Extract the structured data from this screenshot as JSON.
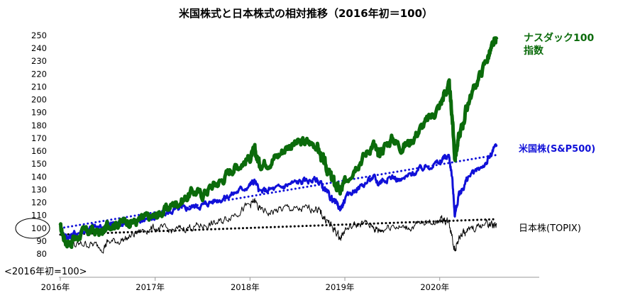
{
  "chart_data": {
    "type": "line",
    "title": "米国株式と日本株式の相対推移（2016年初＝100）",
    "note": "<2016年初=100>",
    "ylim": [
      80,
      250
    ],
    "yticks": [
      80,
      90,
      100,
      110,
      120,
      130,
      140,
      150,
      160,
      170,
      180,
      190,
      200,
      210,
      220,
      230,
      240,
      250
    ],
    "xlim": [
      2016.0,
      2020.75
    ],
    "xticks": [
      {
        "x": 2016,
        "label": "2016年"
      },
      {
        "x": 2017,
        "label": "2017年"
      },
      {
        "x": 2018,
        "label": "2018年"
      },
      {
        "x": 2019,
        "label": "2019年"
      },
      {
        "x": 2020,
        "label": "2020年"
      }
    ],
    "grid": false,
    "highlight_tick": 100,
    "series": [
      {
        "name": "ナスダック100指数",
        "label_lines": [
          "ナスダック100",
          "指数"
        ],
        "color": "#0b6b0b",
        "x": [
          2016.0,
          2016.05,
          2016.1,
          2016.15,
          2016.25,
          2016.35,
          2016.45,
          2016.5,
          2016.6,
          2016.7,
          2016.8,
          2016.9,
          2017.0,
          2017.1,
          2017.2,
          2017.3,
          2017.4,
          2017.5,
          2017.6,
          2017.7,
          2017.8,
          2017.9,
          2018.0,
          2018.05,
          2018.1,
          2018.2,
          2018.3,
          2018.4,
          2018.5,
          2018.6,
          2018.7,
          2018.75,
          2018.8,
          2018.85,
          2018.9,
          2018.95,
          2019.0,
          2019.1,
          2019.2,
          2019.3,
          2019.35,
          2019.4,
          2019.5,
          2019.6,
          2019.7,
          2019.8,
          2019.9,
          2020.0,
          2020.05,
          2020.1,
          2020.13,
          2020.16,
          2020.2,
          2020.25,
          2020.3,
          2020.4,
          2020.5,
          2020.55,
          2020.6
        ],
        "values": [
          100,
          91,
          88,
          92,
          97,
          98,
          96,
          103,
          104,
          106,
          105,
          108,
          109,
          114,
          119,
          122,
          129,
          126,
          133,
          137,
          146,
          150,
          155,
          160,
          150,
          152,
          157,
          164,
          166,
          167,
          165,
          156,
          148,
          140,
          134,
          128,
          135,
          148,
          156,
          166,
          156,
          162,
          170,
          163,
          168,
          178,
          186,
          195,
          205,
          210,
          188,
          155,
          170,
          183,
          198,
          215,
          232,
          240,
          247
        ]
      },
      {
        "name": "米国株(S&P500)",
        "color": "#1010d8",
        "x": [
          2016.0,
          2016.05,
          2016.1,
          2016.15,
          2016.25,
          2016.35,
          2016.45,
          2016.5,
          2016.6,
          2016.7,
          2016.8,
          2016.9,
          2017.0,
          2017.1,
          2017.2,
          2017.3,
          2017.4,
          2017.5,
          2017.6,
          2017.7,
          2017.8,
          2017.9,
          2018.0,
          2018.05,
          2018.1,
          2018.2,
          2018.3,
          2018.4,
          2018.5,
          2018.6,
          2018.7,
          2018.75,
          2018.8,
          2018.85,
          2018.9,
          2018.95,
          2019.0,
          2019.1,
          2019.2,
          2019.3,
          2019.35,
          2019.4,
          2019.5,
          2019.6,
          2019.7,
          2019.8,
          2019.9,
          2020.0,
          2020.05,
          2020.1,
          2020.13,
          2020.16,
          2020.2,
          2020.25,
          2020.3,
          2020.4,
          2020.5,
          2020.55,
          2020.6
        ],
        "values": [
          100,
          94,
          93,
          96,
          98,
          101,
          100,
          103,
          104,
          105,
          104,
          108,
          108,
          111,
          114,
          115,
          117,
          118,
          121,
          123,
          126,
          130,
          134,
          137,
          128,
          130,
          131,
          134,
          136,
          137,
          138,
          134,
          128,
          124,
          120,
          115,
          122,
          130,
          134,
          140,
          135,
          138,
          140,
          137,
          142,
          146,
          149,
          151,
          155,
          156,
          140,
          110,
          125,
          132,
          140,
          145,
          152,
          158,
          165
        ]
      },
      {
        "name": "日本株(TOPIX)",
        "color": "#000000",
        "x": [
          2016.0,
          2016.05,
          2016.1,
          2016.15,
          2016.25,
          2016.35,
          2016.45,
          2016.5,
          2016.6,
          2016.7,
          2016.8,
          2016.9,
          2017.0,
          2017.1,
          2017.2,
          2017.3,
          2017.4,
          2017.5,
          2017.6,
          2017.7,
          2017.8,
          2017.9,
          2018.0,
          2018.05,
          2018.1,
          2018.2,
          2018.3,
          2018.4,
          2018.5,
          2018.6,
          2018.7,
          2018.75,
          2018.8,
          2018.85,
          2018.9,
          2018.95,
          2019.0,
          2019.1,
          2019.2,
          2019.3,
          2019.35,
          2019.4,
          2019.5,
          2019.6,
          2019.7,
          2019.8,
          2019.9,
          2020.0,
          2020.05,
          2020.1,
          2020.13,
          2020.16,
          2020.2,
          2020.25,
          2020.3,
          2020.4,
          2020.5,
          2020.55,
          2020.6
        ],
        "values": [
          100,
          90,
          88,
          86,
          88,
          87,
          85,
          89,
          90,
          92,
          96,
          99,
          100,
          99,
          98,
          100,
          101,
          102,
          103,
          105,
          110,
          114,
          118,
          121,
          114,
          112,
          114,
          116,
          114,
          115,
          116,
          111,
          107,
          102,
          98,
          92,
          99,
          102,
          104,
          101,
          98,
          99,
          103,
          100,
          101,
          103,
          105,
          106,
          107,
          104,
          95,
          82,
          92,
          96,
          98,
          101,
          104,
          102,
          103
        ]
      }
    ],
    "trendlines": [
      {
        "series": "米国株(S&P500)",
        "color": "#1010d8",
        "x": [
          2016.0,
          2020.6
        ],
        "values": [
          100,
          157
        ]
      },
      {
        "series": "日本株(TOPIX)",
        "color": "#000000",
        "x": [
          2016.0,
          2020.6
        ],
        "values": [
          95,
          107
        ]
      }
    ]
  }
}
